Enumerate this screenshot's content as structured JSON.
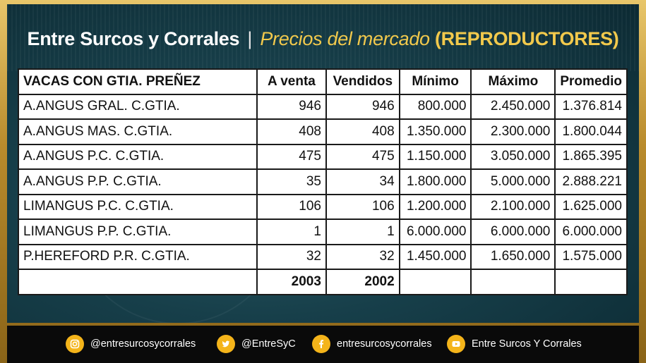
{
  "header": {
    "brand": "Entre Surcos y Corrales",
    "separator": "|",
    "subtitle": "Precios del mercado",
    "tag": "(REPRODUCTORES)"
  },
  "table": {
    "columns": [
      "VACAS CON GTIA. PREÑEZ",
      "A venta",
      "Vendidos",
      "Mínimo",
      "Máximo",
      "Promedio"
    ],
    "rows": [
      [
        "A.ANGUS GRAL. C.GTIA.",
        "946",
        "946",
        "800.000",
        "2.450.000",
        "1.376.814"
      ],
      [
        "A.ANGUS MAS. C.GTIA.",
        "408",
        "408",
        "1.350.000",
        "2.300.000",
        "1.800.044"
      ],
      [
        "A.ANGUS P.C. C.GTIA.",
        "475",
        "475",
        "1.150.000",
        "3.050.000",
        "1.865.395"
      ],
      [
        "A.ANGUS P.P. C.GTIA.",
        "35",
        "34",
        "1.800.000",
        "5.000.000",
        "2.888.221"
      ],
      [
        "LIMANGUS P.C. C.GTIA.",
        "106",
        "106",
        "1.200.000",
        "2.100.000",
        "1.625.000"
      ],
      [
        "LIMANGUS P.P. C.GTIA.",
        "1",
        "1",
        "6.000.000",
        "6.000.000",
        "6.000.000"
      ],
      [
        "P.HEREFORD P.R. C.GTIA.",
        "32",
        "32",
        "1.450.000",
        "1.650.000",
        "1.575.000"
      ]
    ],
    "totals": [
      "",
      "2003",
      "2002",
      "",
      "",
      ""
    ]
  },
  "footer": {
    "items": [
      {
        "icon": "instagram-icon",
        "label": "@entresurcosycorrales"
      },
      {
        "icon": "twitter-icon",
        "label": "@EntreSyC"
      },
      {
        "icon": "facebook-icon",
        "label": "entresurcosycorrales"
      },
      {
        "icon": "youtube-icon",
        "label": "Entre Surcos Y Corrales"
      }
    ],
    "icon_color": "#f4b41a"
  },
  "colors": {
    "accent": "#f2c94c",
    "frame": "#c9a040",
    "background": "#173f4a"
  }
}
